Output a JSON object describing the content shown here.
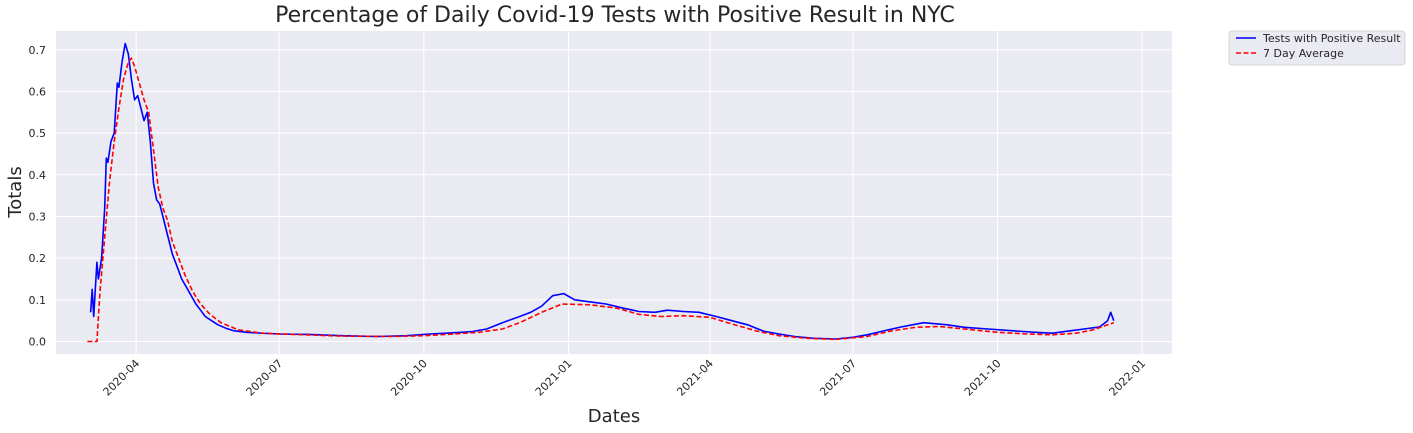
{
  "chart_data": {
    "type": "line",
    "title": "Percentage of Daily Covid-19 Tests with Positive Result in NYC",
    "xlabel": "Dates",
    "ylabel": "Totals",
    "xlim": [
      "2020-02-10",
      "2022-01-20"
    ],
    "ylim": [
      -0.03,
      0.745
    ],
    "yticks": [
      0.0,
      0.1,
      0.2,
      0.3,
      0.4,
      0.5,
      0.6,
      0.7
    ],
    "ytick_labels": [
      "0.0",
      "0.1",
      "0.2",
      "0.3",
      "0.4",
      "0.5",
      "0.6",
      "0.7"
    ],
    "xticks": [
      "2020-04-01",
      "2020-07-01",
      "2020-10-01",
      "2021-01-01",
      "2021-04-01",
      "2021-07-01",
      "2021-10-01",
      "2022-01-01"
    ],
    "xtick_labels": [
      "2020-04",
      "2020-07",
      "2020-10",
      "2021-01",
      "2021-04",
      "2021-07",
      "2021-10",
      "2022-01"
    ],
    "grid": true,
    "legend_position": "outside-top-right",
    "background": "#eaeaf2",
    "series": [
      {
        "name": "Tests with Positive Result",
        "color": "#0000ff",
        "style": "solid",
        "points": [
          [
            "2020-03-03",
            0.07
          ],
          [
            "2020-03-04",
            0.125
          ],
          [
            "2020-03-05",
            0.06
          ],
          [
            "2020-03-07",
            0.19
          ],
          [
            "2020-03-08",
            0.15
          ],
          [
            "2020-03-10",
            0.2
          ],
          [
            "2020-03-12",
            0.32
          ],
          [
            "2020-03-13",
            0.44
          ],
          [
            "2020-03-14",
            0.43
          ],
          [
            "2020-03-16",
            0.48
          ],
          [
            "2020-03-18",
            0.5
          ],
          [
            "2020-03-20",
            0.62
          ],
          [
            "2020-03-21",
            0.61
          ],
          [
            "2020-03-23",
            0.67
          ],
          [
            "2020-03-25",
            0.715
          ],
          [
            "2020-03-27",
            0.69
          ],
          [
            "2020-03-29",
            0.63
          ],
          [
            "2020-03-31",
            0.58
          ],
          [
            "2020-04-02",
            0.59
          ],
          [
            "2020-04-04",
            0.56
          ],
          [
            "2020-04-06",
            0.53
          ],
          [
            "2020-04-08",
            0.55
          ],
          [
            "2020-04-10",
            0.48
          ],
          [
            "2020-04-12",
            0.38
          ],
          [
            "2020-04-14",
            0.34
          ],
          [
            "2020-04-16",
            0.33
          ],
          [
            "2020-04-18",
            0.3
          ],
          [
            "2020-04-20",
            0.27
          ],
          [
            "2020-04-22",
            0.24
          ],
          [
            "2020-04-24",
            0.21
          ],
          [
            "2020-04-26",
            0.19
          ],
          [
            "2020-04-28",
            0.17
          ],
          [
            "2020-04-30",
            0.15
          ],
          [
            "2020-05-03",
            0.13
          ],
          [
            "2020-05-06",
            0.11
          ],
          [
            "2020-05-09",
            0.09
          ],
          [
            "2020-05-12",
            0.075
          ],
          [
            "2020-05-15",
            0.06
          ],
          [
            "2020-05-19",
            0.05
          ],
          [
            "2020-05-23",
            0.04
          ],
          [
            "2020-05-28",
            0.032
          ],
          [
            "2020-06-02",
            0.026
          ],
          [
            "2020-06-10",
            0.022
          ],
          [
            "2020-06-20",
            0.02
          ],
          [
            "2020-07-01",
            0.018
          ],
          [
            "2020-07-20",
            0.017
          ],
          [
            "2020-08-10",
            0.014
          ],
          [
            "2020-09-01",
            0.012
          ],
          [
            "2020-09-20",
            0.014
          ],
          [
            "2020-10-05",
            0.018
          ],
          [
            "2020-10-15",
            0.02
          ],
          [
            "2020-10-25",
            0.022
          ],
          [
            "2020-11-01",
            0.024
          ],
          [
            "2020-11-10",
            0.03
          ],
          [
            "2020-11-20",
            0.045
          ],
          [
            "2020-12-01",
            0.06
          ],
          [
            "2020-12-08",
            0.07
          ],
          [
            "2020-12-15",
            0.085
          ],
          [
            "2020-12-22",
            0.11
          ],
          [
            "2020-12-29",
            0.115
          ],
          [
            "2021-01-05",
            0.1
          ],
          [
            "2021-01-15",
            0.095
          ],
          [
            "2021-01-25",
            0.09
          ],
          [
            "2021-02-05",
            0.08
          ],
          [
            "2021-02-15",
            0.072
          ],
          [
            "2021-02-25",
            0.07
          ],
          [
            "2021-03-05",
            0.075
          ],
          [
            "2021-03-15",
            0.072
          ],
          [
            "2021-03-25",
            0.07
          ],
          [
            "2021-04-05",
            0.06
          ],
          [
            "2021-04-15",
            0.05
          ],
          [
            "2021-04-25",
            0.04
          ],
          [
            "2021-05-05",
            0.025
          ],
          [
            "2021-05-15",
            0.018
          ],
          [
            "2021-05-25",
            0.012
          ],
          [
            "2021-06-05",
            0.008
          ],
          [
            "2021-06-20",
            0.006
          ],
          [
            "2021-07-01",
            0.01
          ],
          [
            "2021-07-10",
            0.016
          ],
          [
            "2021-07-20",
            0.025
          ],
          [
            "2021-08-01",
            0.035
          ],
          [
            "2021-08-15",
            0.045
          ],
          [
            "2021-08-30",
            0.04
          ],
          [
            "2021-09-10",
            0.034
          ],
          [
            "2021-09-25",
            0.03
          ],
          [
            "2021-10-10",
            0.026
          ],
          [
            "2021-10-25",
            0.022
          ],
          [
            "2021-11-05",
            0.02
          ],
          [
            "2021-11-15",
            0.025
          ],
          [
            "2021-11-25",
            0.03
          ],
          [
            "2021-12-05",
            0.035
          ],
          [
            "2021-12-10",
            0.05
          ],
          [
            "2021-12-12",
            0.07
          ],
          [
            "2021-12-14",
            0.05
          ]
        ]
      },
      {
        "name": "7 Day Average",
        "color": "#ff0000",
        "style": "dashed",
        "points": [
          [
            "2020-03-01",
            0.0
          ],
          [
            "2020-03-07",
            0.0
          ],
          [
            "2020-03-09",
            0.12
          ],
          [
            "2020-03-12",
            0.25
          ],
          [
            "2020-03-15",
            0.38
          ],
          [
            "2020-03-18",
            0.48
          ],
          [
            "2020-03-21",
            0.56
          ],
          [
            "2020-03-24",
            0.63
          ],
          [
            "2020-03-27",
            0.67
          ],
          [
            "2020-03-29",
            0.68
          ],
          [
            "2020-03-31",
            0.66
          ],
          [
            "2020-04-03",
            0.62
          ],
          [
            "2020-04-06",
            0.58
          ],
          [
            "2020-04-09",
            0.55
          ],
          [
            "2020-04-12",
            0.46
          ],
          [
            "2020-04-15",
            0.37
          ],
          [
            "2020-04-18",
            0.32
          ],
          [
            "2020-04-21",
            0.29
          ],
          [
            "2020-04-24",
            0.24
          ],
          [
            "2020-04-28",
            0.2
          ],
          [
            "2020-05-02",
            0.16
          ],
          [
            "2020-05-07",
            0.12
          ],
          [
            "2020-05-12",
            0.09
          ],
          [
            "2020-05-18",
            0.065
          ],
          [
            "2020-05-25",
            0.045
          ],
          [
            "2020-06-05",
            0.028
          ],
          [
            "2020-06-20",
            0.02
          ],
          [
            "2020-07-10",
            0.017
          ],
          [
            "2020-08-10",
            0.013
          ],
          [
            "2020-09-10",
            0.012
          ],
          [
            "2020-10-01",
            0.014
          ],
          [
            "2020-10-20",
            0.018
          ],
          [
            "2020-11-05",
            0.022
          ],
          [
            "2020-11-20",
            0.03
          ],
          [
            "2020-12-01",
            0.045
          ],
          [
            "2020-12-15",
            0.07
          ],
          [
            "2020-12-28",
            0.09
          ],
          [
            "2021-01-15",
            0.088
          ],
          [
            "2021-02-01",
            0.08
          ],
          [
            "2021-02-15",
            0.065
          ],
          [
            "2021-03-01",
            0.06
          ],
          [
            "2021-03-15",
            0.062
          ],
          [
            "2021-04-01",
            0.058
          ],
          [
            "2021-04-15",
            0.042
          ],
          [
            "2021-05-01",
            0.025
          ],
          [
            "2021-05-15",
            0.014
          ],
          [
            "2021-06-01",
            0.008
          ],
          [
            "2021-06-20",
            0.005
          ],
          [
            "2021-07-10",
            0.012
          ],
          [
            "2021-07-25",
            0.025
          ],
          [
            "2021-08-10",
            0.034
          ],
          [
            "2021-08-25",
            0.036
          ],
          [
            "2021-09-10",
            0.03
          ],
          [
            "2021-10-01",
            0.022
          ],
          [
            "2021-10-20",
            0.018
          ],
          [
            "2021-11-05",
            0.016
          ],
          [
            "2021-11-20",
            0.02
          ],
          [
            "2021-12-01",
            0.028
          ],
          [
            "2021-12-14",
            0.045
          ]
        ]
      }
    ]
  }
}
